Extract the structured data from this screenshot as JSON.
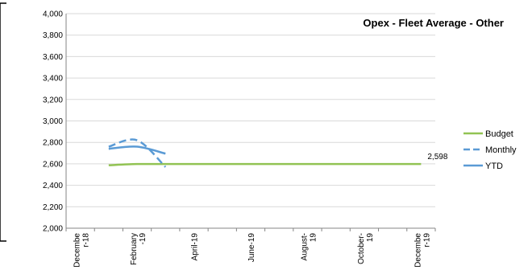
{
  "chart_data": {
    "type": "line",
    "title": "Opex - Fleet Average - Other",
    "xlabel": "",
    "ylabel": "",
    "categories": [
      "December-18",
      "January-19",
      "February-19",
      "March-19",
      "April-19",
      "May-19",
      "June-19",
      "July-19",
      "August-19",
      "September-19",
      "October-19",
      "November-19",
      "December-19"
    ],
    "tick_labels": [
      "Decembe\nr-18",
      "February\n-19",
      "April-19",
      "June-19",
      "August-\n19",
      "October-\n19",
      "Decembe\nr-19"
    ],
    "ylim": [
      2000,
      4000
    ],
    "y_ticks": [
      "2,000",
      "2,200",
      "2,400",
      "2,600",
      "2,800",
      "3,000",
      "3,200",
      "3,400",
      "3,600",
      "3,800",
      "4,000"
    ],
    "grid": true,
    "legend_position": "right",
    "series": [
      {
        "name": "Budget",
        "color": "#92c353",
        "style": "solid",
        "values": [
          null,
          2587,
          2598,
          2598,
          2598,
          2598,
          2598,
          2598,
          2598,
          2598,
          2598,
          2598,
          2598
        ]
      },
      {
        "name": "Monthly",
        "color": "#5b9bd5",
        "style": "dashed",
        "values": [
          null,
          2760,
          2820,
          2570,
          null,
          null,
          null,
          null,
          null,
          null,
          null,
          null,
          null
        ]
      },
      {
        "name": "YTD",
        "color": "#5b9bd5",
        "style": "solid",
        "values": [
          null,
          2740,
          2760,
          2695,
          null,
          null,
          null,
          null,
          null,
          null,
          null,
          null,
          null
        ]
      }
    ],
    "annotations": [
      {
        "text": "2,598",
        "series": "Budget",
        "category": "December-19"
      }
    ]
  }
}
